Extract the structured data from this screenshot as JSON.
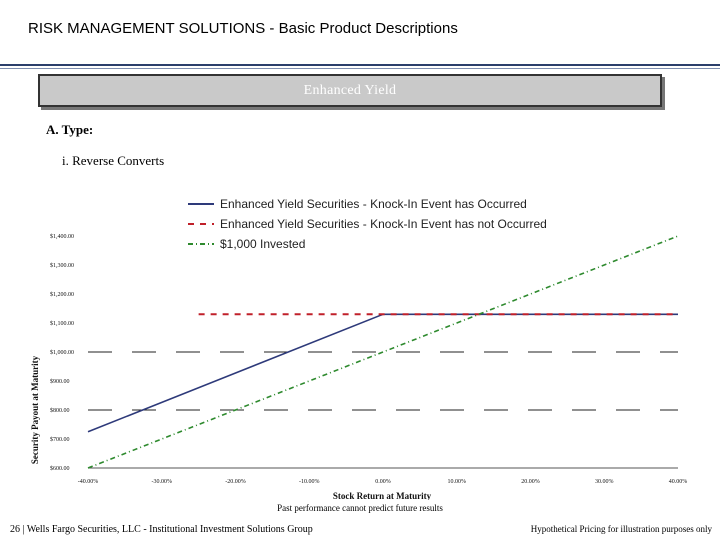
{
  "header": {
    "title": "RISK MANAGEMENT SOLUTIONS - Basic Product Descriptions"
  },
  "banner": {
    "label": "Enhanced Yield"
  },
  "section": {
    "heading": "A. Type:",
    "subheading": "i. Reverse Converts"
  },
  "chart_data": {
    "type": "line",
    "title": "",
    "xlabel": "Stock Return at Maturity",
    "ylabel": "Security Payout at Maturity",
    "x_ticks": [
      "-40.00%",
      "-30.00%",
      "-20.00%",
      "-10.00%",
      "0.00%",
      "10.00%",
      "20.00%",
      "30.00%",
      "40.00%"
    ],
    "y_ticks": [
      "$600.00",
      "$700.00",
      "$800.00",
      "$900.00",
      "$1,000.00",
      "$1,100.00",
      "$1,200.00",
      "$1,300.00",
      "$1,400.00"
    ],
    "xlim": [
      -40,
      40
    ],
    "ylim": [
      600,
      1400
    ],
    "legend_position": "top",
    "grid": "horizontal dashed at $800 and $1,000",
    "series": [
      {
        "name": "Enhanced Yield Securities - Knock-In Event has Occurred",
        "color": "#2e3a7a",
        "style": "solid",
        "x": [
          -40,
          0,
          40
        ],
        "y": [
          725,
          1130,
          1130
        ]
      },
      {
        "name": "Enhanced Yield Securities - Knock-In Event has not Occurred",
        "color": "#c0202a",
        "style": "dashed",
        "x": [
          -25,
          40
        ],
        "y": [
          1130,
          1130
        ]
      },
      {
        "name": "$1,000 Invested",
        "color": "#2e8a2e",
        "style": "dashdot",
        "x": [
          -40,
          40
        ],
        "y": [
          600,
          1400
        ]
      }
    ]
  },
  "disclaimer": "Past performance cannot predict future results",
  "footer": {
    "left": "26 |  Wells Fargo Securities, LLC - Institutional Investment Solutions Group",
    "right": "Hypothetical Pricing for illustration purposes only"
  }
}
